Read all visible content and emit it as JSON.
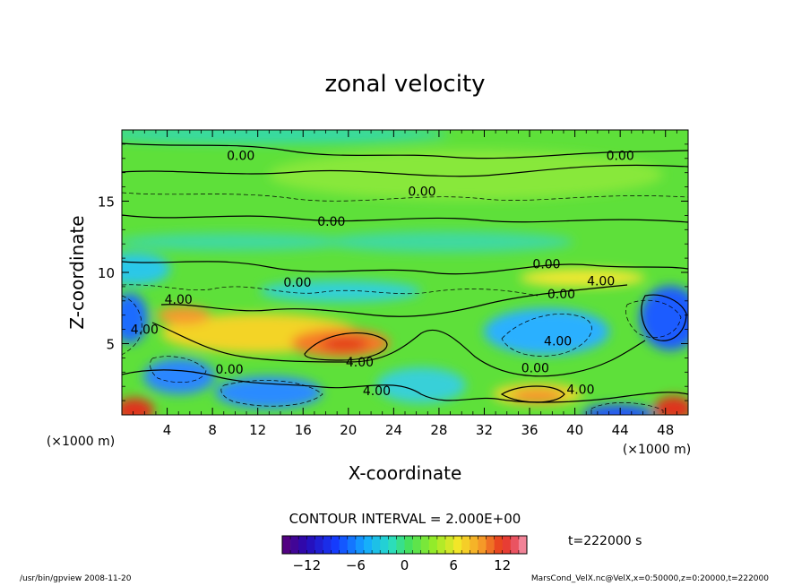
{
  "chart_data": {
    "type": "heatmap",
    "title": "zonal velocity",
    "xlabel": "X-coordinate",
    "ylabel": "Z-coordinate",
    "x_unit_left": "(×1000 m)",
    "x_unit_right": "(×1000 m)",
    "xlim": [
      0,
      50
    ],
    "ylim": [
      0,
      20
    ],
    "x_ticks": [
      "4",
      "8",
      "12",
      "16",
      "20",
      "24",
      "28",
      "32",
      "36",
      "40",
      "44",
      "48"
    ],
    "y_ticks": [
      "5",
      "10",
      "15"
    ],
    "contour_labels": [
      {
        "text": "0.00",
        "x": 10.5,
        "y": 18.2
      },
      {
        "text": "0.00",
        "x": 44.0,
        "y": 18.2
      },
      {
        "text": "0.00",
        "x": 26.5,
        "y": 15.7
      },
      {
        "text": "0.00",
        "x": 18.5,
        "y": 13.6
      },
      {
        "text": "0.00",
        "x": 37.5,
        "y": 10.6
      },
      {
        "text": "0.00",
        "x": 15.5,
        "y": 9.3
      },
      {
        "text": "4.00",
        "x": 42.3,
        "y": 9.4
      },
      {
        "text": "0.00",
        "x": 38.8,
        "y": 8.5
      },
      {
        "text": "4.00",
        "x": 5.0,
        "y": 8.1
      },
      {
        "text": "4.00",
        "x": 2.0,
        "y": 6.0
      },
      {
        "text": "4.00",
        "x": 38.5,
        "y": 5.2
      },
      {
        "text": "4.00",
        "x": 21.0,
        "y": 3.7
      },
      {
        "text": "0.00",
        "x": 9.5,
        "y": 3.2
      },
      {
        "text": "0.00",
        "x": 36.5,
        "y": 3.3
      },
      {
        "text": "4.00",
        "x": 22.5,
        "y": 1.7
      },
      {
        "text": "4.00",
        "x": 40.5,
        "y": 1.8
      }
    ],
    "contour_interval_text": "CONTOUR INTERVAL = 2.000E+00",
    "time_text": "t=222000  s",
    "colorbar": {
      "min": -15,
      "max": 15,
      "ticks": [
        "−12",
        "−6",
        "0",
        "6",
        "12"
      ],
      "tick_values": [
        -12,
        -6,
        0,
        6,
        12
      ]
    },
    "footer_left": "/usr/bin/gpview   2008-11-20",
    "footer_right": "MarsCond_VelX.nc@VelX,x=0:50000,z=0:20000,t=222000",
    "grid": false
  }
}
